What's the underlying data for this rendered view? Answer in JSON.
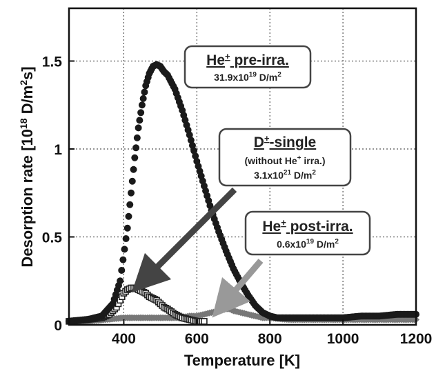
{
  "chart_data": {
    "type": "scatter",
    "xlabel": "Temperature [K]",
    "ylabel_main": "Desorption rate [10",
    "ylabel_exp1": "18",
    "ylabel_mid": " D/m",
    "ylabel_exp2": "2",
    "ylabel_end": "s]",
    "xlim": [
      250,
      1200
    ],
    "ylim": [
      0,
      1.8
    ],
    "xticks": [
      400,
      600,
      800,
      1000,
      1200
    ],
    "yticks": [
      0,
      0.5,
      1,
      1.5
    ],
    "ytick_labels": [
      "0",
      "0.5",
      "1",
      "1.5"
    ],
    "grid": true,
    "series": [
      {
        "name": "He+ pre-irra.",
        "color": "#1a1a1a",
        "marker": "circle",
        "x": [
          250,
          300,
          340,
          370,
          390,
          410,
          420,
          430,
          440,
          450,
          460,
          470,
          480,
          490,
          500,
          510,
          520,
          540,
          560,
          580,
          600,
          620,
          640,
          660,
          680,
          700,
          720,
          740,
          760,
          780,
          800,
          820,
          850,
          900,
          950,
          1000,
          1050,
          1100,
          1150,
          1200
        ],
        "y": [
          0.02,
          0.03,
          0.05,
          0.12,
          0.25,
          0.55,
          0.75,
          0.95,
          1.12,
          1.25,
          1.36,
          1.43,
          1.47,
          1.48,
          1.47,
          1.44,
          1.42,
          1.34,
          1.22,
          1.08,
          0.93,
          0.79,
          0.65,
          0.53,
          0.42,
          0.32,
          0.24,
          0.17,
          0.11,
          0.07,
          0.05,
          0.04,
          0.04,
          0.04,
          0.04,
          0.04,
          0.05,
          0.05,
          0.06,
          0.06
        ]
      },
      {
        "name": "D+-single",
        "color": "#222222",
        "marker": "square",
        "x": [
          250,
          300,
          340,
          360,
          380,
          390,
          400,
          410,
          420,
          430,
          440,
          450,
          460,
          470,
          480,
          490,
          500,
          510,
          520,
          540,
          560,
          580,
          600,
          620
        ],
        "y": [
          0.02,
          0.03,
          0.04,
          0.06,
          0.1,
          0.14,
          0.18,
          0.2,
          0.21,
          0.21,
          0.2,
          0.19,
          0.18,
          0.16,
          0.15,
          0.14,
          0.12,
          0.1,
          0.09,
          0.06,
          0.04,
          0.03,
          0.02,
          0.02
        ]
      },
      {
        "name": "He+ post-irra.",
        "color": "#777777",
        "marker": "diamond",
        "x": [
          250,
          300,
          350,
          400,
          450,
          500,
          550,
          580,
          600,
          620,
          640,
          660,
          680,
          690,
          700,
          720,
          740,
          760,
          780,
          800,
          850,
          900,
          950,
          1000,
          1050,
          1100,
          1150,
          1200
        ],
        "y": [
          0.02,
          0.02,
          0.03,
          0.04,
          0.04,
          0.04,
          0.04,
          0.05,
          0.05,
          0.06,
          0.07,
          0.08,
          0.09,
          0.09,
          0.08,
          0.07,
          0.06,
          0.05,
          0.04,
          0.04,
          0.03,
          0.03,
          0.03,
          0.03,
          0.03,
          0.03,
          0.03,
          0.03
        ]
      }
    ],
    "annotations": [
      {
        "id": "pre",
        "title_main": "He",
        "title_sup": "+",
        "title_rest": " pre-irra.",
        "line1_a": "31.9x10",
        "line1_sup": "19",
        "line1_b": " D/m",
        "line1_sup2": "2",
        "line2": ""
      },
      {
        "id": "single",
        "title_main": "D",
        "title_sup": "+",
        "title_rest": "-single",
        "line1_a": "(without He",
        "line1_sup": "+",
        "line1_b": " irra.)",
        "line1_sup2": "",
        "line2_a": "3.1x10",
        "line2_sup": "21",
        "line2_b": " D/m",
        "line2_sup2": "2"
      },
      {
        "id": "post",
        "title_main": "He",
        "title_sup": "+",
        "title_rest": " post-irra.",
        "line1_a": "0.6x10",
        "line1_sup": "19",
        "line1_b": " D/m",
        "line1_sup2": "2",
        "line2": ""
      }
    ]
  }
}
